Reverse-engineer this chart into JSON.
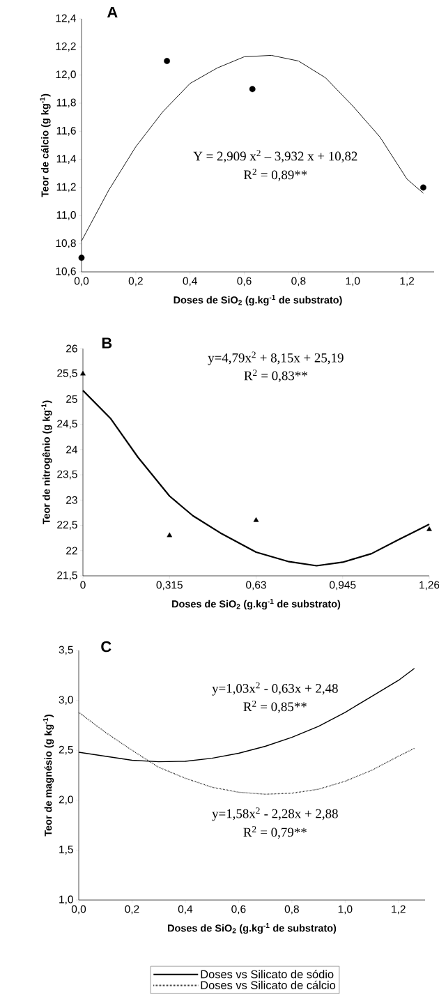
{
  "chart_data": [
    {
      "type": "scatter",
      "title": "A",
      "xlabel": "Doses de SiO$_{2}$ (g.kg$^{-1}$ de substrato)",
      "ylabel": "Teor de cálcio (g kg$^{-1}$)",
      "xlim": [
        0,
        1.3
      ],
      "ylim": [
        10.6,
        12.4
      ],
      "xticks": [
        {
          "value": 0,
          "label": "0,0"
        },
        {
          "value": 0.2,
          "label": "0,2"
        },
        {
          "value": 0.4,
          "label": "0,4"
        },
        {
          "value": 0.6,
          "label": "0,6"
        },
        {
          "value": 0.8,
          "label": "0,8"
        },
        {
          "value": 1.0,
          "label": "1,0"
        },
        {
          "value": 1.2,
          "label": "1,2"
        }
      ],
      "yticks": [
        {
          "value": 10.6,
          "label": "10,6"
        },
        {
          "value": 10.8,
          "label": "10,8"
        },
        {
          "value": 11.0,
          "label": "11,0"
        },
        {
          "value": 11.2,
          "label": "11,2"
        },
        {
          "value": 11.4,
          "label": "11,4"
        },
        {
          "value": 11.6,
          "label": "11,6"
        },
        {
          "value": 11.8,
          "label": "11,8"
        },
        {
          "value": 12.0,
          "label": "12,0"
        },
        {
          "value": 12.2,
          "label": "12,2"
        },
        {
          "value": 12.4,
          "label": "12,4"
        }
      ],
      "series": [
        {
          "type": "scatter",
          "marker": "circle",
          "color": "#000000",
          "x": [
            0,
            0.315,
            0.63,
            1.26
          ],
          "values": [
            10.7,
            12.1,
            11.9,
            11.2
          ]
        },
        {
          "type": "line",
          "marker": "none",
          "color": "#000000",
          "x": [
            0,
            0.1,
            0.2,
            0.3,
            0.4,
            0.5,
            0.6,
            0.7,
            0.8,
            0.9,
            1.0,
            1.1,
            1.2,
            1.26
          ],
          "values": [
            10.82,
            11.18,
            11.49,
            11.74,
            11.94,
            12.05,
            12.13,
            12.14,
            12.1,
            11.98,
            11.78,
            11.56,
            11.26,
            11.16
          ]
        }
      ],
      "annotations": [
        "Y = 2,909 x$^{2}$ – 3,932 x + 10,82",
        "R$^{2}$  = 0,89**"
      ]
    },
    {
      "type": "scatter",
      "title": "B",
      "xlabel": "Doses de SiO$_{2}$ (g.kg$^{-1}$ de substrato)",
      "ylabel": "Teor de nitrogênio (g kg$^{-1}$)",
      "xlim": [
        0,
        1.26
      ],
      "ylim": [
        21.5,
        26
      ],
      "xticks": [
        0,
        {
          "value": 0.315,
          "label": "0,315"
        },
        {
          "value": 0.63,
          "label": "0,63"
        },
        {
          "value": 0.945,
          "label": "0,945"
        },
        {
          "value": 1.26,
          "label": "1,26"
        }
      ],
      "yticks": [
        {
          "value": 21.5,
          "label": "21,5"
        },
        22,
        {
          "value": 22.5,
          "label": "22,5"
        },
        23,
        {
          "value": 23.5,
          "label": "23,5"
        },
        24,
        {
          "value": 24.5,
          "label": "24,5"
        },
        25,
        {
          "value": 25.5,
          "label": "25,5"
        },
        26
      ],
      "series": [
        {
          "type": "scatter",
          "marker": "triangle",
          "color": "#000000",
          "x": [
            0,
            0.315,
            0.63,
            1.26
          ],
          "values": [
            25.5,
            22.3,
            22.6,
            22.42
          ]
        },
        {
          "type": "line",
          "marker": "none",
          "color": "#000000",
          "x": [
            0,
            0.1,
            0.2,
            0.315,
            0.4,
            0.5,
            0.63,
            0.75,
            0.85,
            0.945,
            1.05,
            1.15,
            1.26
          ],
          "values": [
            25.17,
            24.62,
            23.85,
            23.08,
            22.69,
            22.35,
            21.97,
            21.78,
            21.7,
            21.77,
            21.94,
            22.22,
            22.52
          ]
        }
      ],
      "annotations": [
        "y=4,79x$^{2}$ + 8,15x + 25,19",
        "R$^{2}$ = 0,83**"
      ]
    },
    {
      "type": "line",
      "title": "C",
      "xlabel": "Doses de SiO$_{2}$ (g.kg$^{-1}$ de substrato)",
      "ylabel": "Teor de magnésio (g kg$^{-1}$)",
      "xlim": [
        0,
        1.3
      ],
      "ylim": [
        1.0,
        3.5
      ],
      "xticks": [
        {
          "value": 0,
          "label": "0,0"
        },
        {
          "value": 0.2,
          "label": "0,2"
        },
        {
          "value": 0.4,
          "label": "0,4"
        },
        {
          "value": 0.6,
          "label": "0,6"
        },
        {
          "value": 0.8,
          "label": "0,8"
        },
        {
          "value": 1.0,
          "label": "1,0"
        },
        {
          "value": 1.2,
          "label": "1,2"
        }
      ],
      "yticks": [
        {
          "value": 1.0,
          "label": "1,0"
        },
        {
          "value": 1.5,
          "label": "1,5"
        },
        {
          "value": 2.0,
          "label": "2,0"
        },
        {
          "value": 2.5,
          "label": "2,5"
        },
        {
          "value": 3.0,
          "label": "3,0"
        },
        {
          "value": 3.5,
          "label": "3,5"
        }
      ],
      "legend": "bottom",
      "series": [
        {
          "name": "Doses vs Silicato de sódio",
          "color": "#000000",
          "line_style": "solid",
          "x": [
            0,
            0.1,
            0.2,
            0.3,
            0.4,
            0.5,
            0.6,
            0.7,
            0.8,
            0.9,
            1.0,
            1.1,
            1.2,
            1.26
          ],
          "values": [
            2.48,
            2.44,
            2.4,
            2.385,
            2.39,
            2.42,
            2.47,
            2.54,
            2.63,
            2.74,
            2.88,
            3.04,
            3.2,
            3.32
          ]
        },
        {
          "name": "Doses vs Silicato de cálcio",
          "color": "#000000",
          "line_style": "dotted",
          "x": [
            0,
            0.1,
            0.2,
            0.3,
            0.4,
            0.5,
            0.6,
            0.7,
            0.8,
            0.9,
            1.0,
            1.1,
            1.2,
            1.26
          ],
          "values": [
            2.88,
            2.68,
            2.5,
            2.33,
            2.22,
            2.13,
            2.08,
            2.06,
            2.07,
            2.11,
            2.19,
            2.3,
            2.44,
            2.52
          ]
        }
      ],
      "annotations": [
        "y=1,03x$^{2}$ - 0,63x + 2,48",
        "R$^{2}$ = 0,85**",
        "y=1,58x$^{2}$ - 2,28x + 2,88",
        "R$^{2}$ = 0,79**"
      ]
    }
  ]
}
